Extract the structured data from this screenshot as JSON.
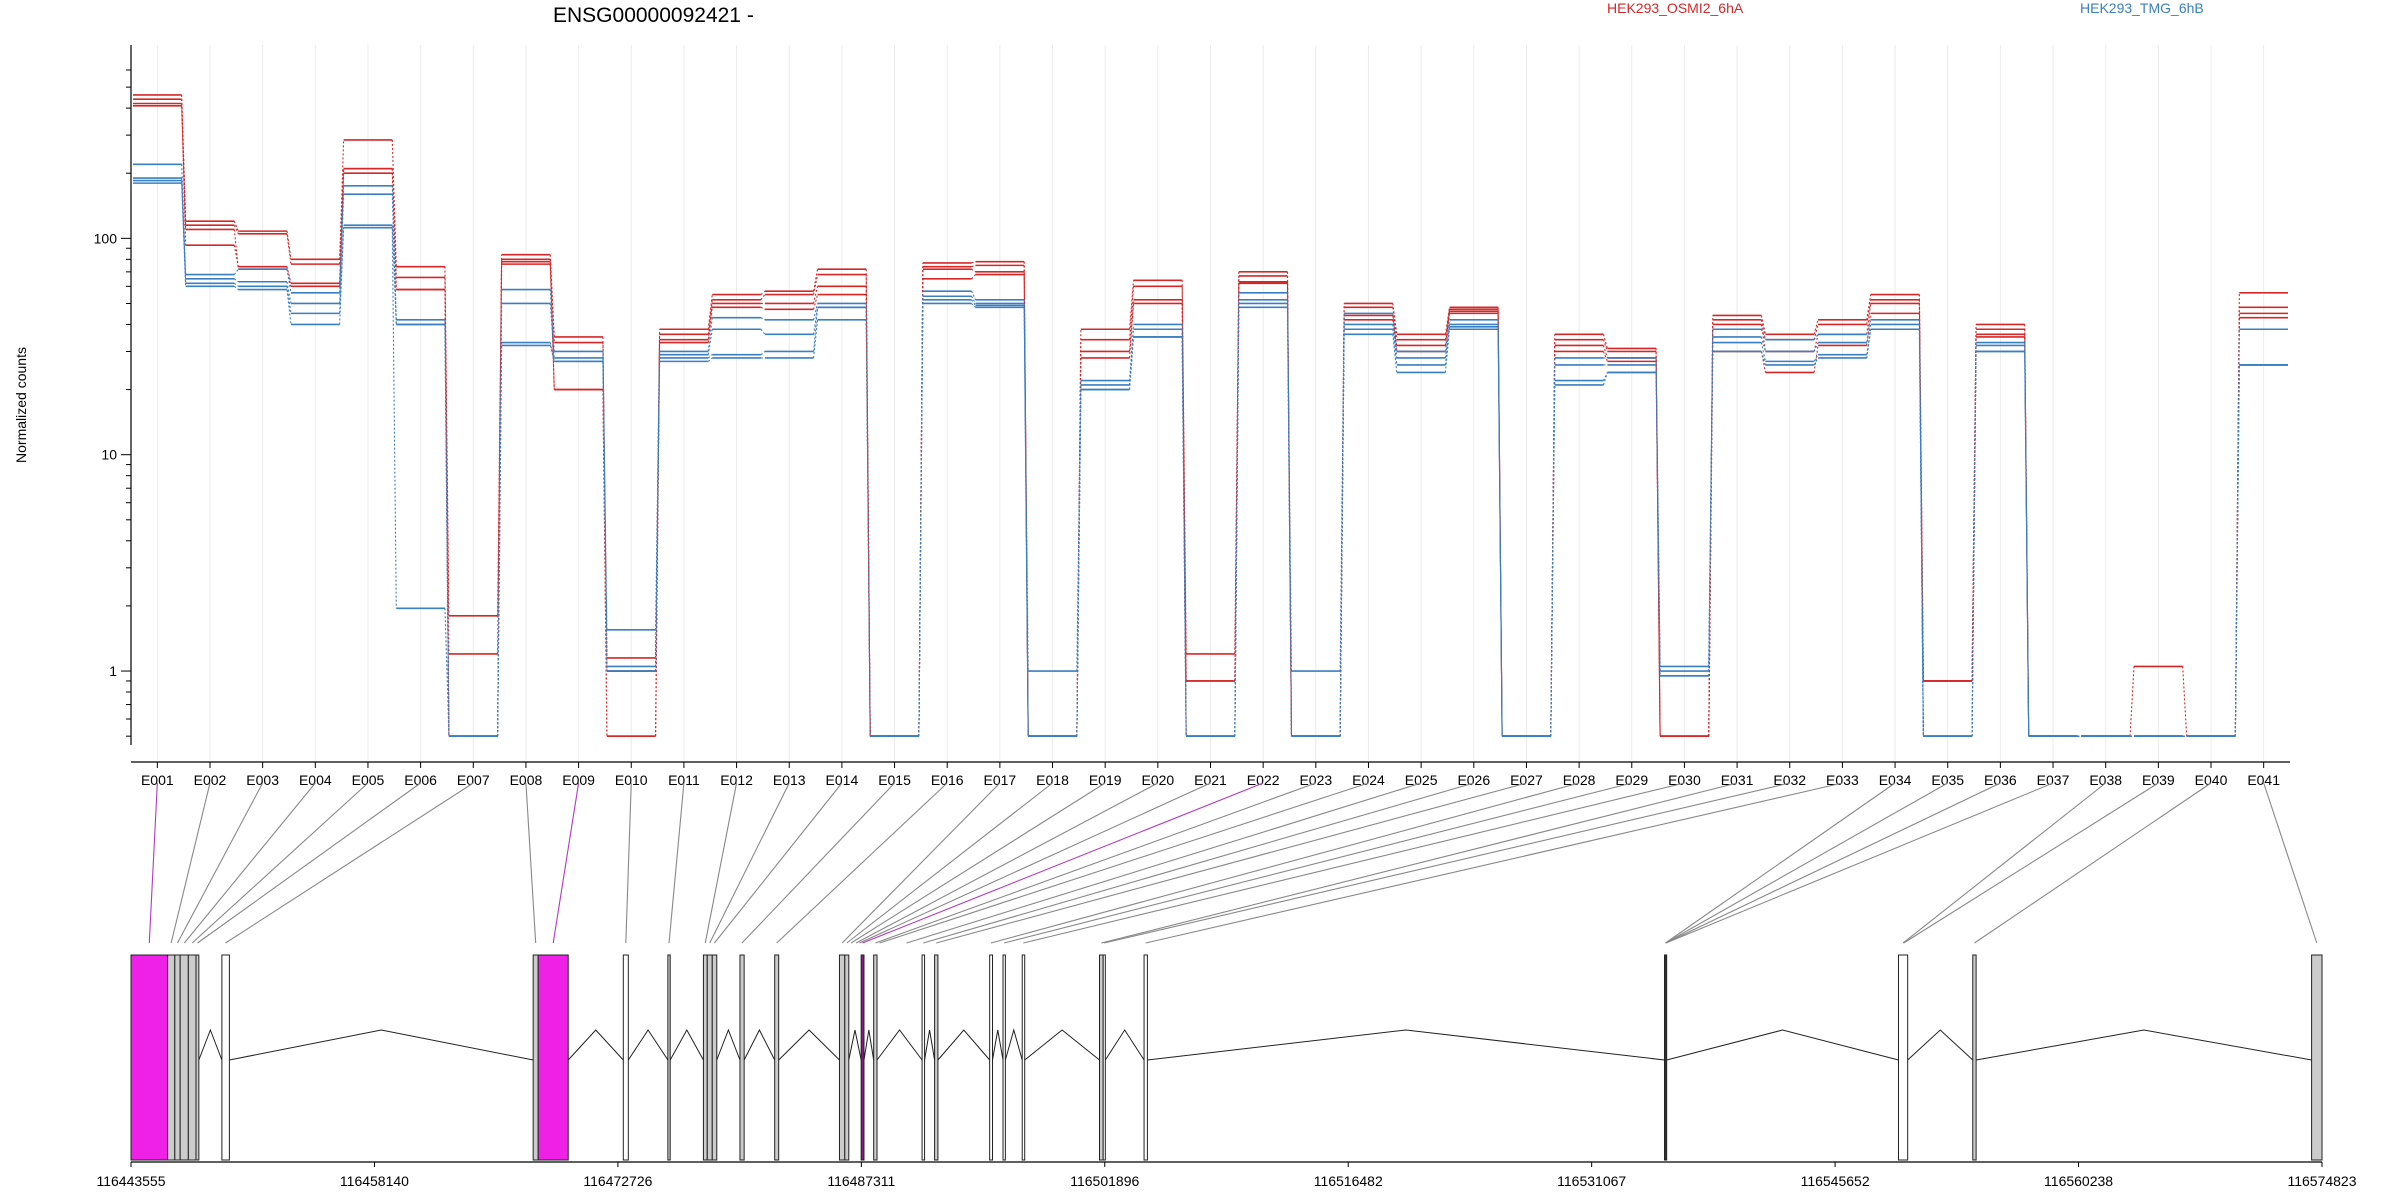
{
  "chart_data": {
    "type": "line",
    "title": "ENSG00000092421 -",
    "ylabel": "Normalized counts",
    "y_scale": "log",
    "ylim": [
      0.48,
      600
    ],
    "y_ticks": [
      {
        "value": 1,
        "label": "1"
      },
      {
        "value": 10,
        "label": "10"
      },
      {
        "value": 100,
        "label": "100"
      }
    ],
    "categories": [
      "E001",
      "E002",
      "E003",
      "E004",
      "E005",
      "E006",
      "E007",
      "E008",
      "E009",
      "E010",
      "E011",
      "E012",
      "E013",
      "E014",
      "E015",
      "E016",
      "E017",
      "E018",
      "E019",
      "E020",
      "E021",
      "E022",
      "E023",
      "E024",
      "E025",
      "E026",
      "E027",
      "E028",
      "E029",
      "E030",
      "E031",
      "E032",
      "E033",
      "E034",
      "E035",
      "E036",
      "E037",
      "E038",
      "E039",
      "E040",
      "E041"
    ],
    "legend": [
      {
        "label": "HEK293_OSMI2_6hA",
        "color": "#d62728"
      },
      {
        "label": "HEK293_TMG_6hB",
        "color": "#3a7fc0"
      }
    ],
    "series": [
      {
        "group": 0,
        "color": "#d62728",
        "values": [
          460,
          120,
          108,
          80,
          285,
          74,
          1.8,
          84,
          35,
          1.15,
          38,
          55,
          57,
          72,
          0.5,
          77,
          78,
          0.5,
          38,
          64,
          1.2,
          70,
          0.5,
          50,
          36,
          48,
          0.5,
          36,
          31,
          0.5,
          44,
          36,
          42,
          55,
          0.9,
          40,
          0.5,
          0.5,
          1.05,
          0.5,
          56
        ]
      },
      {
        "group": 0,
        "color": "#d62728",
        "values": [
          440,
          115,
          105,
          76,
          210,
          66,
          1.2,
          80,
          33,
          1.0,
          36,
          52,
          55,
          68,
          0.5,
          74,
          75,
          0.5,
          34,
          60,
          0.9,
          67,
          0.5,
          48,
          34,
          47,
          0.5,
          34,
          30,
          0.5,
          42,
          34,
          40,
          52,
          0.9,
          38,
          0.5,
          0.5,
          0.5,
          0.5,
          48
        ]
      },
      {
        "group": 0,
        "color": "#d62728",
        "values": [
          420,
          93,
          74,
          62,
          210,
          58,
          0.5,
          78,
          20,
          0.5,
          34,
          50,
          50,
          60,
          0.5,
          72,
          70,
          0.5,
          30,
          52,
          0.9,
          63,
          0.5,
          44,
          32,
          46,
          0.5,
          32,
          28,
          0.5,
          40,
          30,
          36,
          50,
          0.9,
          36,
          0.5,
          0.5,
          0.5,
          0.5,
          45
        ]
      },
      {
        "group": 0,
        "color": "#d62728",
        "values": [
          410,
          110,
          72,
          60,
          200,
          58,
          0.5,
          76,
          20,
          0.5,
          33,
          48,
          47,
          55,
          0.5,
          65,
          68,
          0.5,
          28,
          50,
          0.5,
          62,
          0.5,
          42,
          30,
          45,
          0.5,
          30,
          27,
          0.5,
          30,
          24,
          32,
          45,
          0.5,
          35,
          0.5,
          0.5,
          0.5,
          0.5,
          43
        ]
      },
      {
        "group": 1,
        "color": "#3a7fc0",
        "values": [
          220,
          68,
          72,
          56,
          175,
          42,
          0.5,
          58,
          30,
          1.55,
          30,
          43,
          42,
          50,
          0.5,
          57,
          52,
          1.0,
          22,
          40,
          0.5,
          56,
          1.0,
          45,
          30,
          42,
          0.5,
          28,
          28,
          1.05,
          38,
          34,
          36,
          42,
          0.5,
          33,
          0.5,
          0.5,
          0.5,
          0.5,
          38
        ]
      },
      {
        "group": 1,
        "color": "#3a7fc0",
        "values": [
          190,
          65,
          63,
          50,
          160,
          40,
          0.5,
          50,
          28,
          1.05,
          29,
          38,
          36,
          48,
          0.5,
          54,
          50,
          0.5,
          21,
          38,
          0.5,
          52,
          0.5,
          40,
          28,
          40,
          0.5,
          26,
          26,
          1.0,
          35,
          30,
          33,
          40,
          0.5,
          32,
          0.5,
          0.5,
          0.5,
          0.5,
          26
        ]
      },
      {
        "group": 1,
        "color": "#3a7fc0",
        "values": [
          185,
          62,
          60,
          45,
          115,
          40,
          0.5,
          33,
          27,
          1.0,
          28,
          29,
          30,
          48,
          0.5,
          52,
          49,
          0.5,
          20,
          35,
          0.5,
          50,
          0.5,
          38,
          26,
          39,
          0.5,
          22,
          24,
          0.95,
          33,
          27,
          29,
          38,
          0.5,
          30,
          0.5,
          0.5,
          0.5,
          0.5,
          26
        ]
      },
      {
        "group": 1,
        "color": "#3a7fc0",
        "values": [
          180,
          60,
          58,
          40,
          112,
          1.95,
          0.5,
          32,
          27,
          1.0,
          27,
          28,
          28,
          42,
          0.5,
          50,
          48,
          0.5,
          20,
          35,
          0.5,
          48,
          0.5,
          36,
          24,
          38,
          0.5,
          21,
          24,
          0.95,
          30,
          26,
          28,
          38,
          0.5,
          30,
          0.5,
          0.5,
          0.5,
          0.5,
          26
        ]
      }
    ],
    "gene_axis": {
      "start": 116443555,
      "end": 116574823,
      "tick_labels": [
        "116443555",
        "116458140",
        "116472726",
        "116487311",
        "116501896",
        "116516482",
        "116531067",
        "116545652",
        "116560238",
        "116574823"
      ],
      "highlight_color": "#f021e6",
      "exons": [
        {
          "id": "E001",
          "start": 116443555,
          "end": 116445750,
          "fill": "#f021e6"
        },
        {
          "id": "E002",
          "start": 116445750,
          "end": 116446180,
          "fill": "#cccccc"
        },
        {
          "id": "E003",
          "start": 116446180,
          "end": 116446500,
          "fill": "#cccccc"
        },
        {
          "id": "E004",
          "start": 116446500,
          "end": 116446990,
          "fill": "#cccccc"
        },
        {
          "id": "E005",
          "start": 116446990,
          "end": 116447450,
          "fill": "#cccccc"
        },
        {
          "id": "E006",
          "start": 116447450,
          "end": 116447620,
          "fill": "#cccccc"
        },
        {
          "id": "E007",
          "start": 116449000,
          "end": 116449450,
          "fill": "#ffffff"
        },
        {
          "id": "E008",
          "start": 116467650,
          "end": 116467950,
          "fill": "#cccccc"
        },
        {
          "id": "E009",
          "start": 116467950,
          "end": 116469750,
          "fill": "#f021e6"
        },
        {
          "id": "E010",
          "start": 116473050,
          "end": 116473350,
          "fill": "#ffffff"
        },
        {
          "id": "E011",
          "start": 116475720,
          "end": 116475860,
          "fill": "#cccccc"
        },
        {
          "id": "E012",
          "start": 116477850,
          "end": 116478080,
          "fill": "#cccccc"
        },
        {
          "id": "E013",
          "start": 116478080,
          "end": 116478380,
          "fill": "#cccccc"
        },
        {
          "id": "E014",
          "start": 116478380,
          "end": 116478650,
          "fill": "#cccccc"
        },
        {
          "id": "E015",
          "start": 116480040,
          "end": 116480290,
          "fill": "#cccccc"
        },
        {
          "id": "E016",
          "start": 116482120,
          "end": 116482360,
          "fill": "#cccccc"
        },
        {
          "id": "E017",
          "start": 116486000,
          "end": 116486320,
          "fill": "#cccccc"
        },
        {
          "id": "E018",
          "start": 116486320,
          "end": 116486560,
          "fill": "#cccccc"
        },
        {
          "id": "E019",
          "start": 116487300,
          "end": 116487470,
          "fill": "#8a1a8a"
        },
        {
          "id": "E020",
          "start": 116488050,
          "end": 116488250,
          "fill": "#cccccc"
        },
        {
          "id": "E021",
          "start": 116490950,
          "end": 116491100,
          "fill": "#ffffff"
        },
        {
          "id": "E022",
          "start": 116491700,
          "end": 116491900,
          "fill": "#cccccc"
        },
        {
          "id": "E023",
          "start": 116495000,
          "end": 116495170,
          "fill": "#ffffff"
        },
        {
          "id": "E024",
          "start": 116495800,
          "end": 116495940,
          "fill": "#ffffff"
        },
        {
          "id": "E025",
          "start": 116496950,
          "end": 116497100,
          "fill": "#ffffff"
        },
        {
          "id": "E026",
          "start": 116501580,
          "end": 116501800,
          "fill": "#cccccc"
        },
        {
          "id": "E027",
          "start": 116501800,
          "end": 116501930,
          "fill": "#ffffff"
        },
        {
          "id": "E028",
          "start": 116504250,
          "end": 116504450,
          "fill": "#ffffff"
        },
        {
          "id": "E029",
          "start": 116535430,
          "end": 116535560,
          "fill": "#333333"
        },
        {
          "id": "E030",
          "start": 116549450,
          "end": 116550000,
          "fill": "#ffffff"
        },
        {
          "id": "E031",
          "start": 116553900,
          "end": 116554100,
          "fill": "#cccccc"
        },
        {
          "id": "E032",
          "start": 116574200,
          "end": 116574823,
          "fill": "#cccccc"
        }
      ],
      "connectors": [
        {
          "exon": "E001",
          "gpos": 116444650,
          "color": "#b13bbf"
        },
        {
          "exon": "E002",
          "gpos": 116445960,
          "color": "#888888"
        },
        {
          "exon": "E003",
          "gpos": 116446340,
          "color": "#888888"
        },
        {
          "exon": "E004",
          "gpos": 116446750,
          "color": "#888888"
        },
        {
          "exon": "E005",
          "gpos": 116447220,
          "color": "#888888"
        },
        {
          "exon": "E006",
          "gpos": 116447540,
          "color": "#888888"
        },
        {
          "exon": "E007",
          "gpos": 116449220,
          "color": "#888888"
        },
        {
          "exon": "E008",
          "gpos": 116467800,
          "color": "#888888"
        },
        {
          "exon": "E009",
          "gpos": 116468850,
          "color": "#b13bbf"
        },
        {
          "exon": "E010",
          "gpos": 116473200,
          "color": "#888888"
        },
        {
          "exon": "E011",
          "gpos": 116475790,
          "color": "#888888"
        },
        {
          "exon": "E012",
          "gpos": 116477960,
          "color": "#888888"
        },
        {
          "exon": "E013",
          "gpos": 116478230,
          "color": "#888888"
        },
        {
          "exon": "E014",
          "gpos": 116478510,
          "color": "#888888"
        },
        {
          "exon": "E015",
          "gpos": 116480160,
          "color": "#888888"
        },
        {
          "exon": "E016",
          "gpos": 116482240,
          "color": "#888888"
        },
        {
          "exon": "E017",
          "gpos": 116486160,
          "color": "#888888"
        },
        {
          "exon": "E018",
          "gpos": 116486440,
          "color": "#888888"
        },
        {
          "exon": "E019",
          "gpos": 116486700,
          "color": "#888888"
        },
        {
          "exon": "E020",
          "gpos": 116487000,
          "color": "#888888"
        },
        {
          "exon": "E021",
          "gpos": 116487200,
          "color": "#888888"
        },
        {
          "exon": "E022",
          "gpos": 116487380,
          "color": "#b13bbf"
        },
        {
          "exon": "E023",
          "gpos": 116488150,
          "color": "#888888"
        },
        {
          "exon": "E024",
          "gpos": 116488400,
          "color": "#888888"
        },
        {
          "exon": "E025",
          "gpos": 116490020,
          "color": "#888888"
        },
        {
          "exon": "E026",
          "gpos": 116491020,
          "color": "#888888"
        },
        {
          "exon": "E027",
          "gpos": 116491800,
          "color": "#888888"
        },
        {
          "exon": "E028",
          "gpos": 116495080,
          "color": "#888888"
        },
        {
          "exon": "E029",
          "gpos": 116495870,
          "color": "#888888"
        },
        {
          "exon": "E030",
          "gpos": 116497020,
          "color": "#888888"
        },
        {
          "exon": "E031",
          "gpos": 116501690,
          "color": "#888888"
        },
        {
          "exon": "E032",
          "gpos": 116501860,
          "color": "#888888"
        },
        {
          "exon": "E033",
          "gpos": 116504350,
          "color": "#888888"
        },
        {
          "exon": "E034",
          "gpos": 116535490,
          "color": "#888888"
        },
        {
          "exon": "E035",
          "gpos": 116535500,
          "color": "#888888"
        },
        {
          "exon": "E036",
          "gpos": 116535510,
          "color": "#888888"
        },
        {
          "exon": "E037",
          "gpos": 116535520,
          "color": "#888888"
        },
        {
          "exon": "E038",
          "gpos": 116549720,
          "color": "#888888"
        },
        {
          "exon": "E039",
          "gpos": 116549760,
          "color": "#888888"
        },
        {
          "exon": "E040",
          "gpos": 116554000,
          "color": "#888888"
        },
        {
          "exon": "E041",
          "gpos": 116574510,
          "color": "#888888"
        }
      ]
    }
  }
}
